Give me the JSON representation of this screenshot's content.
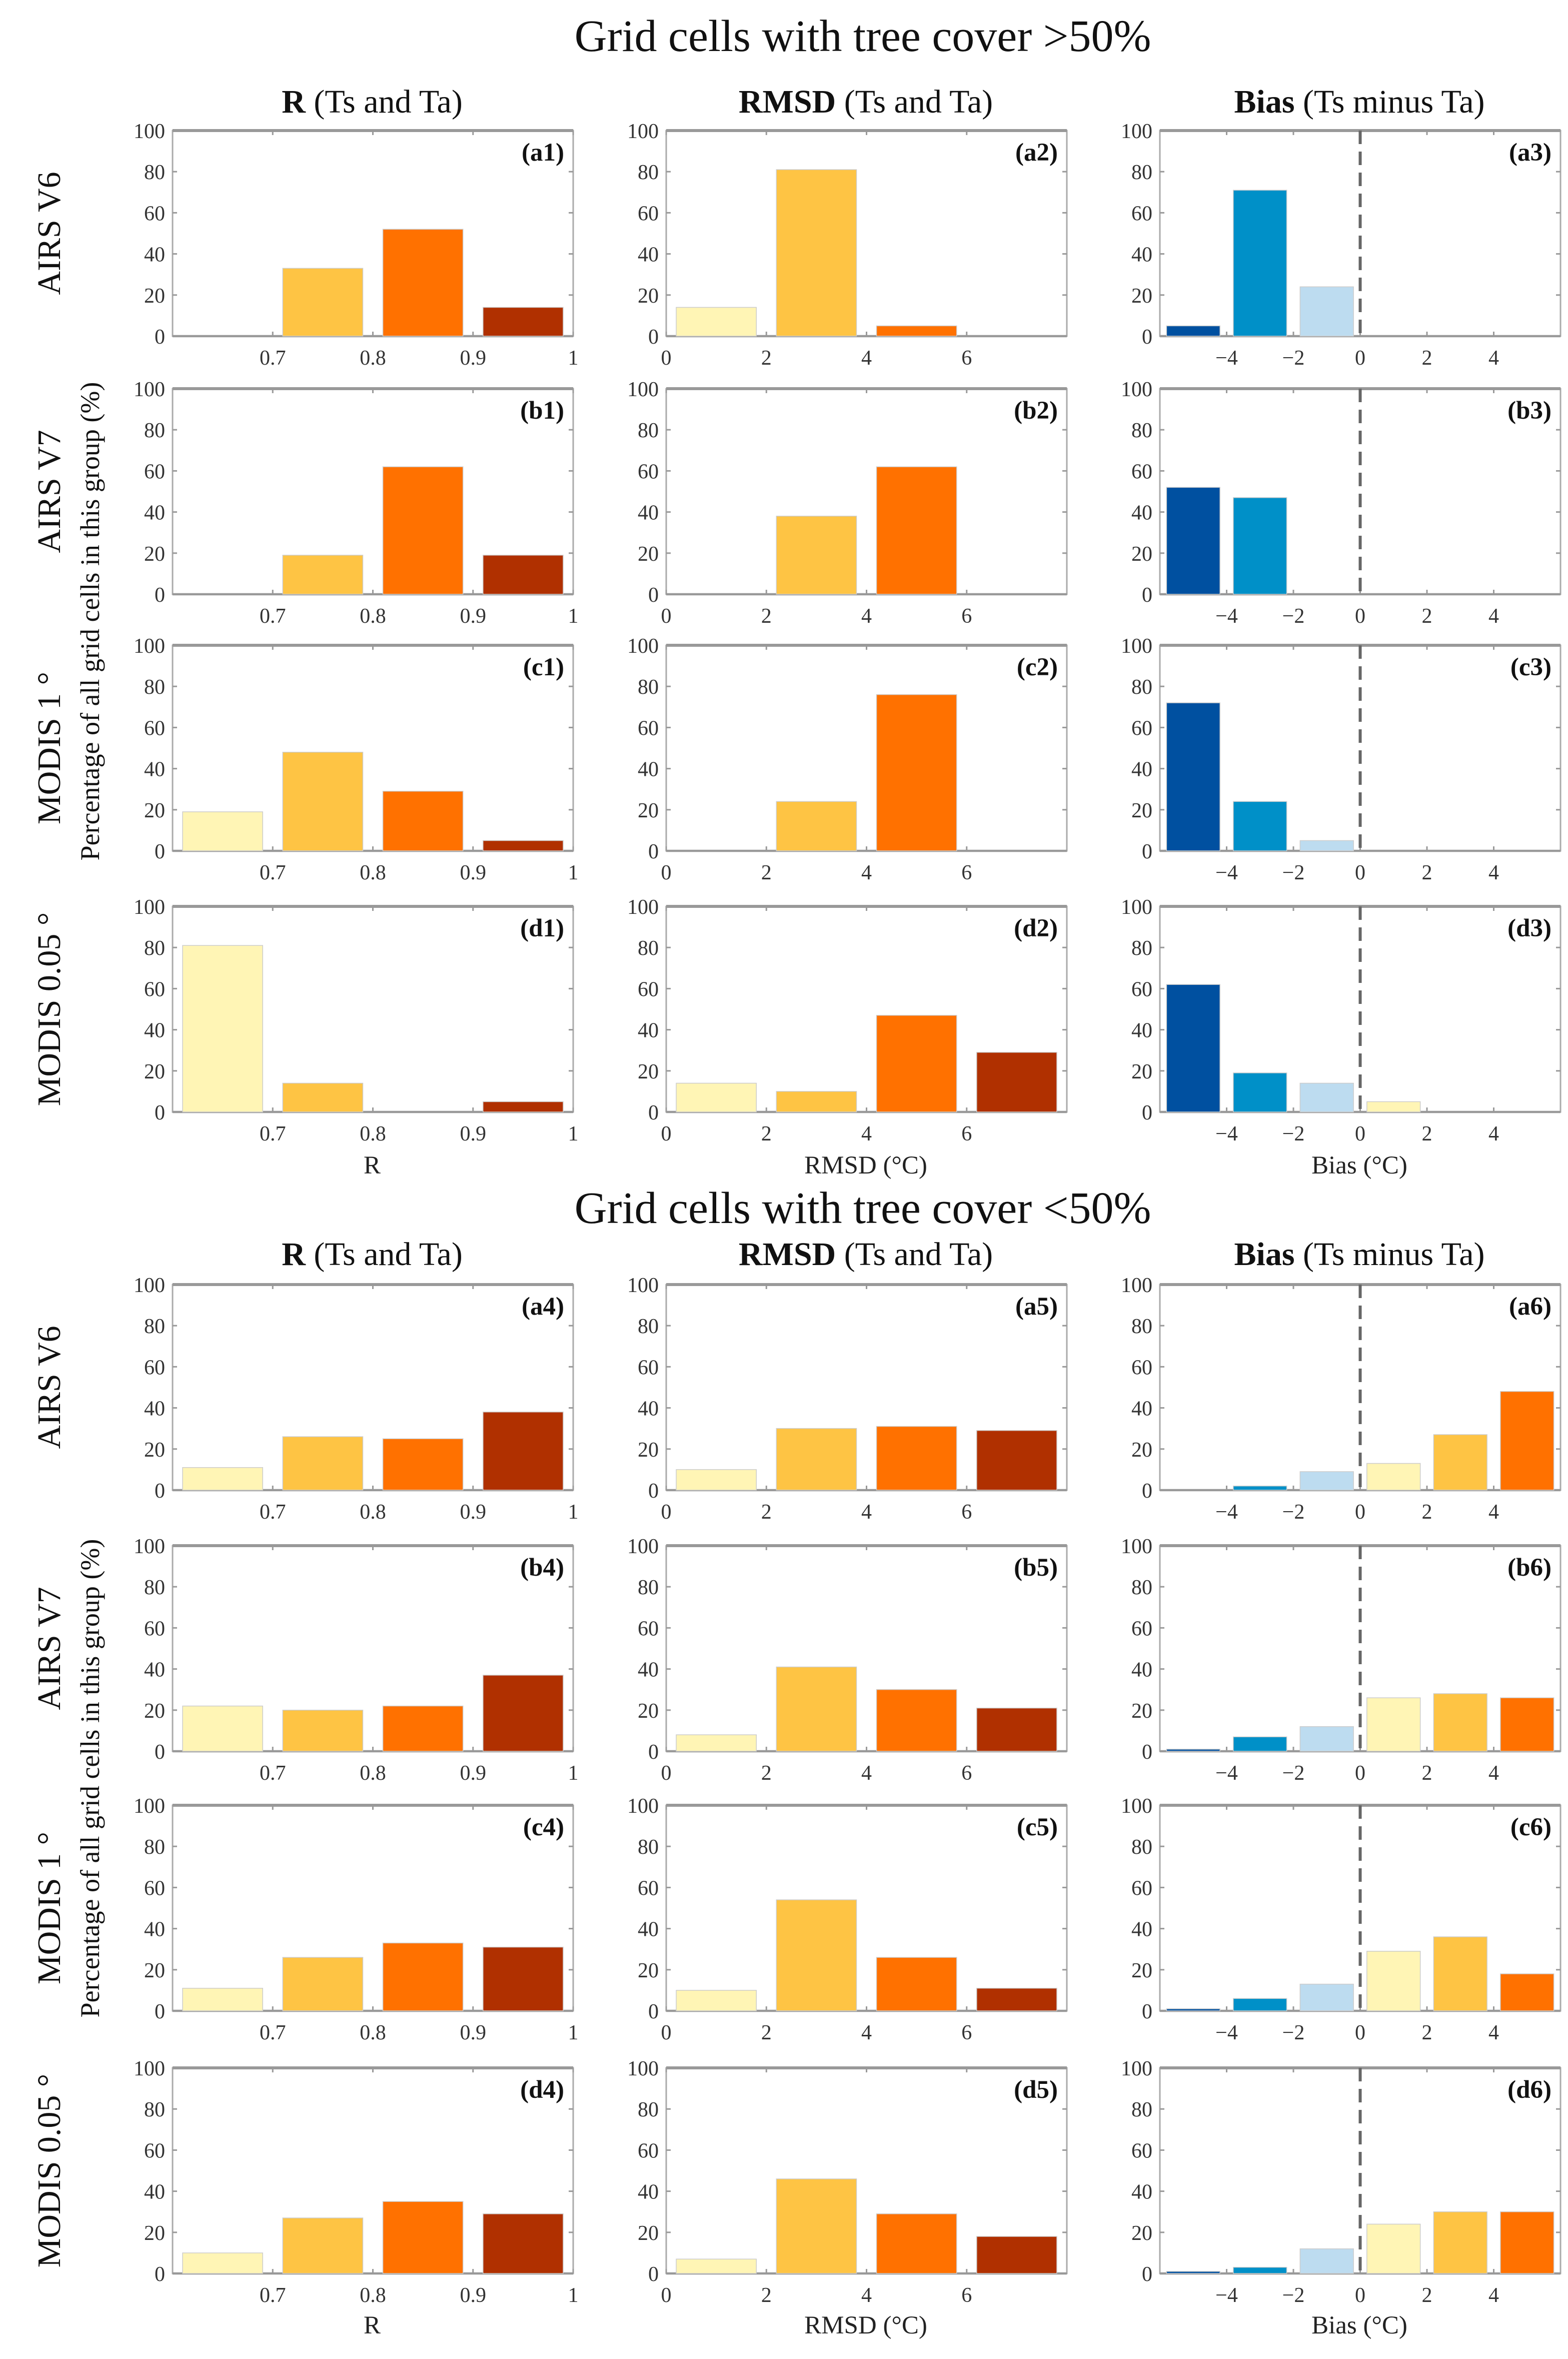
{
  "sections": [
    {
      "title": "Grid cells with tree cover >50%",
      "headers": [
        {
          "bold": "R",
          "rest": " (Ts and Ta)"
        },
        {
          "bold": "RMSD",
          "rest": " (Ts and Ta)"
        },
        {
          "bold": "Bias",
          "rest": " (Ts minus Ta)"
        }
      ],
      "row_labels": [
        "AIRS V6",
        "AIRS V7",
        "MODIS 1 °",
        "MODIS 0.05 °"
      ],
      "ylabel": "Percentage of all grid cells in this group (%)",
      "xlabels": [
        "R",
        "RMSD (°C)",
        "Bias (°C)"
      ]
    },
    {
      "title": "Grid cells with tree cover <50%",
      "headers": [
        {
          "bold": "R",
          "rest": " (Ts and Ta)"
        },
        {
          "bold": "RMSD",
          "rest": " (Ts and Ta)"
        },
        {
          "bold": "Bias",
          "rest": " (Ts minus Ta)"
        }
      ],
      "row_labels": [
        "AIRS V6",
        "AIRS V7",
        "MODIS 1 °",
        "MODIS 0.05 °"
      ],
      "ylabel": "Percentage of all grid cells in this group (%)",
      "xlabels": [
        "R",
        "RMSD (°C)",
        "Bias (°C)"
      ]
    }
  ],
  "chart_data": {
    "type": "bar",
    "ylim": [
      0,
      100
    ],
    "yticks": [
      0,
      20,
      40,
      60,
      80,
      100
    ],
    "ytick_labels": [
      "0",
      "20",
      "40",
      "60",
      "80",
      "100"
    ],
    "column_axes": [
      {
        "variable": "R",
        "xlim": [
          0.6,
          1.0
        ],
        "xticks": [
          0.7,
          0.8,
          0.9,
          1.0
        ],
        "xtick_labels": [
          "0.7",
          "0.8",
          "0.9",
          "1"
        ],
        "bins": [
          [
            0.61,
            0.69
          ],
          [
            0.71,
            0.79
          ],
          [
            0.81,
            0.89
          ],
          [
            0.91,
            0.99
          ]
        ],
        "colors": [
          "#FFF5B5",
          "#FEC444",
          "#FF7100",
          "#B03000"
        ],
        "zero_line": false
      },
      {
        "variable": "RMSD",
        "xlim": [
          0,
          8
        ],
        "xticks": [
          0,
          2,
          4,
          6
        ],
        "xtick_labels": [
          "0",
          "2",
          "4",
          "6"
        ],
        "bins": [
          [
            0.2,
            1.8
          ],
          [
            2.2,
            3.8
          ],
          [
            4.2,
            5.8
          ],
          [
            6.2,
            7.8
          ]
        ],
        "colors": [
          "#FFF5B5",
          "#FEC444",
          "#FF7100",
          "#B03000"
        ],
        "zero_line": false
      },
      {
        "variable": "Bias",
        "xlim": [
          -6,
          6
        ],
        "xticks": [
          -4,
          -2,
          0,
          2,
          4
        ],
        "xtick_labels": [
          "−4",
          "−2",
          "0",
          "2",
          "4"
        ],
        "bins": [
          [
            -5.8,
            -4.2
          ],
          [
            -3.8,
            -2.2
          ],
          [
            -1.8,
            -0.2
          ],
          [
            0.2,
            1.8
          ],
          [
            2.2,
            3.8
          ],
          [
            4.2,
            5.8
          ]
        ],
        "colors": [
          "#0050A0",
          "#0090C8",
          "#BDDCF0",
          "#FFF5B5",
          "#FEC444",
          "#FF7100"
        ],
        "zero_line": true
      }
    ],
    "panels": [
      {
        "label": "(a1)",
        "values": [
          0,
          33,
          52,
          14
        ]
      },
      {
        "label": "(a2)",
        "values": [
          14,
          81,
          5,
          0
        ]
      },
      {
        "label": "(a3)",
        "values": [
          5,
          71,
          24,
          0,
          0,
          0
        ]
      },
      {
        "label": "(b1)",
        "values": [
          0,
          19,
          62,
          19
        ]
      },
      {
        "label": "(b2)",
        "values": [
          0,
          38,
          62,
          0
        ]
      },
      {
        "label": "(b3)",
        "values": [
          52,
          47,
          0,
          0,
          0,
          0
        ]
      },
      {
        "label": "(c1)",
        "values": [
          19,
          48,
          29,
          5
        ]
      },
      {
        "label": "(c2)",
        "values": [
          0,
          24,
          76,
          0
        ]
      },
      {
        "label": "(c3)",
        "values": [
          72,
          24,
          5,
          0,
          0,
          0
        ]
      },
      {
        "label": "(d1)",
        "values": [
          81,
          14,
          0,
          5
        ]
      },
      {
        "label": "(d2)",
        "values": [
          14,
          10,
          47,
          29
        ]
      },
      {
        "label": "(d3)",
        "values": [
          62,
          19,
          14,
          5,
          0,
          0
        ]
      },
      {
        "label": "(a4)",
        "values": [
          11,
          26,
          25,
          38
        ]
      },
      {
        "label": "(a5)",
        "values": [
          10,
          30,
          31,
          29
        ]
      },
      {
        "label": "(a6)",
        "values": [
          0,
          2,
          9,
          13,
          27,
          48
        ]
      },
      {
        "label": "(b4)",
        "values": [
          22,
          20,
          22,
          37
        ]
      },
      {
        "label": "(b5)",
        "values": [
          8,
          41,
          30,
          21
        ]
      },
      {
        "label": "(b6)",
        "values": [
          1,
          7,
          12,
          26,
          28,
          26
        ]
      },
      {
        "label": "(c4)",
        "values": [
          11,
          26,
          33,
          31
        ]
      },
      {
        "label": "(c5)",
        "values": [
          10,
          54,
          26,
          11
        ]
      },
      {
        "label": "(c6)",
        "values": [
          1,
          6,
          13,
          29,
          36,
          18
        ]
      },
      {
        "label": "(d4)",
        "values": [
          10,
          27,
          35,
          29
        ]
      },
      {
        "label": "(d5)",
        "values": [
          7,
          46,
          29,
          18
        ]
      },
      {
        "label": "(d6)",
        "values": [
          1,
          3,
          12,
          24,
          30,
          30
        ]
      }
    ]
  }
}
